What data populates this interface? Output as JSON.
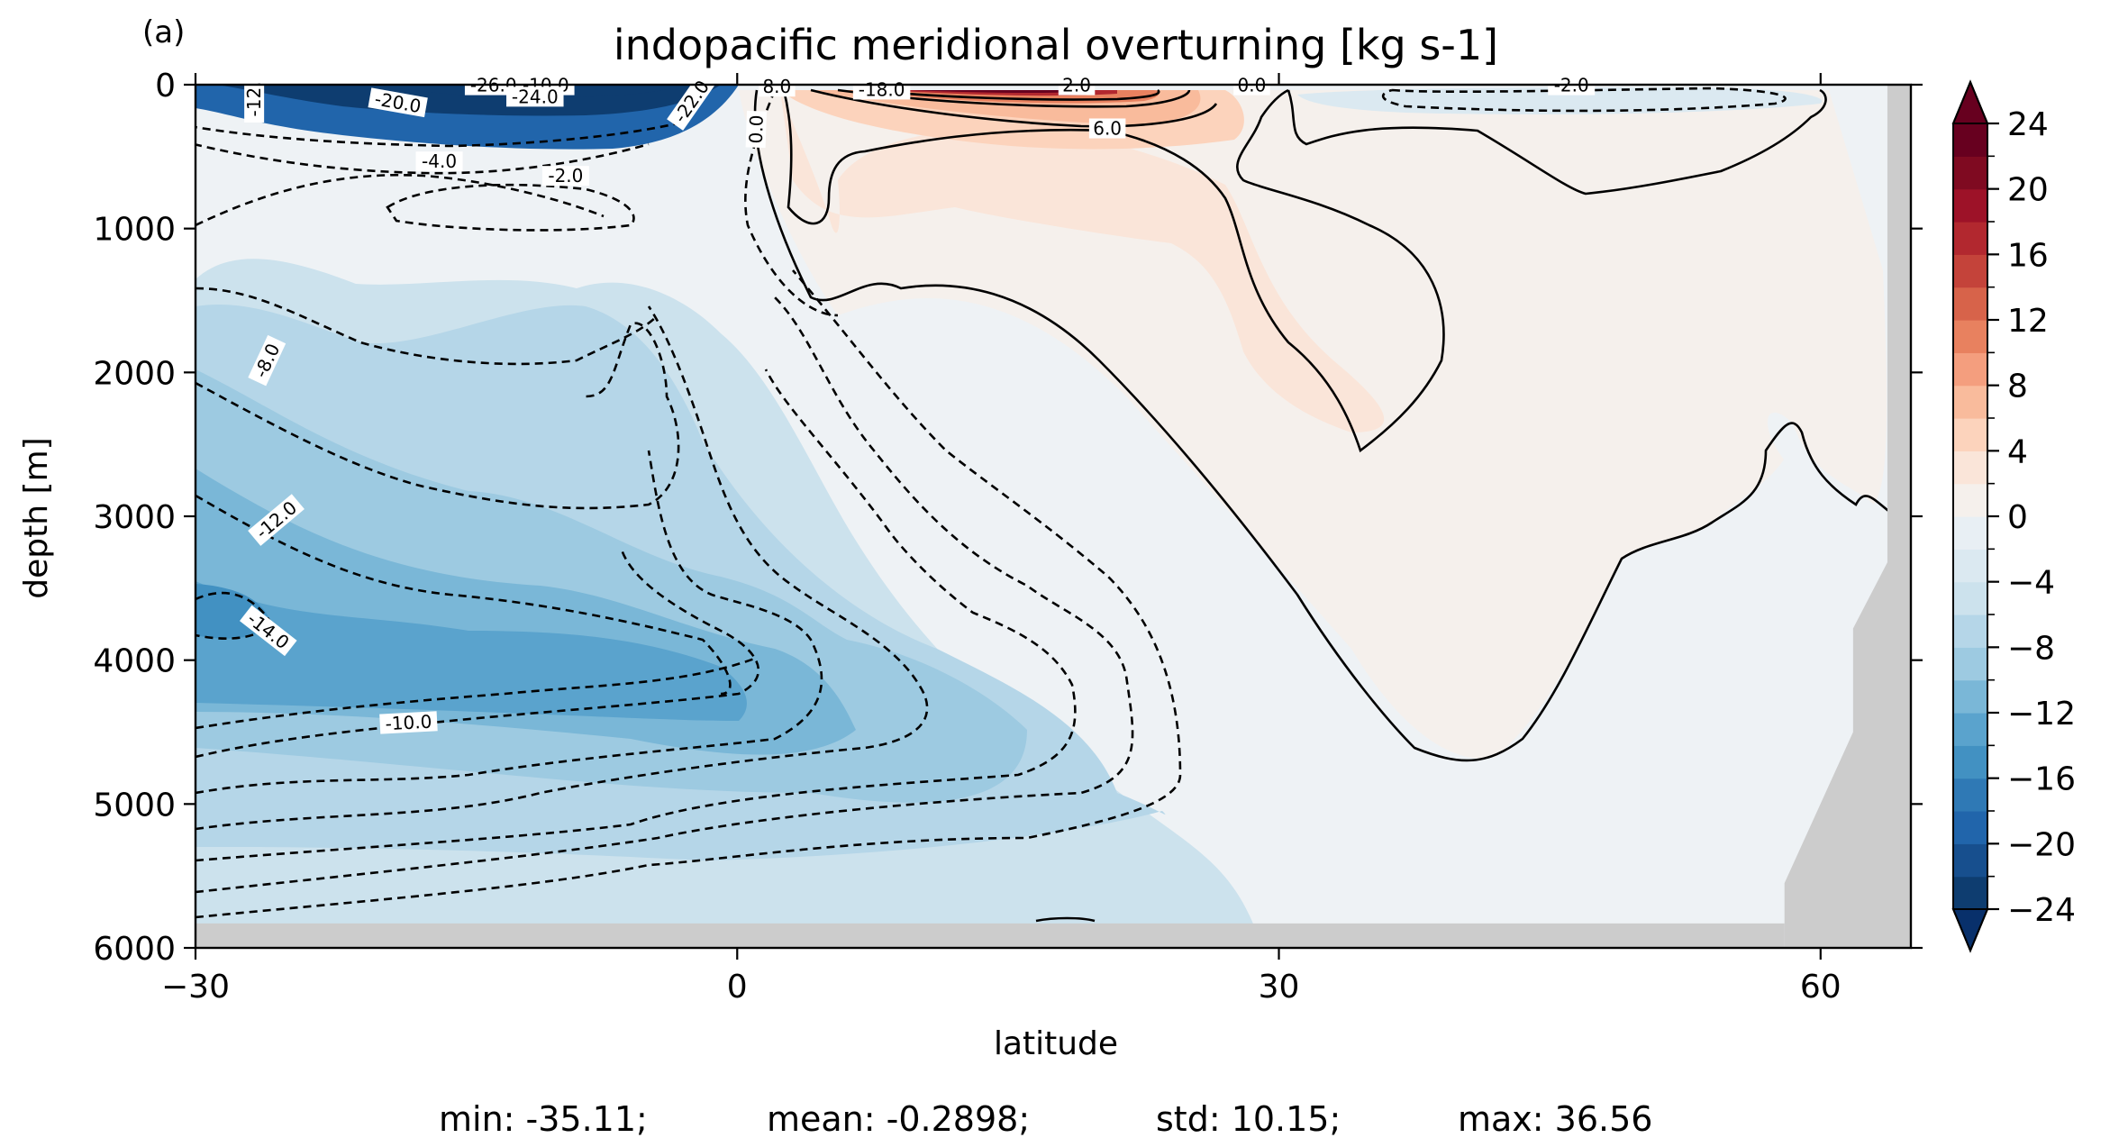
{
  "panel_label": "(a)",
  "stats": {
    "min": "min: -35.11;",
    "mean": "mean: -0.2898;",
    "std": "std: 10.15;",
    "max": "max: 36.56"
  },
  "chart_data": {
    "type": "contourf",
    "title": "indopacific meridional overturning [kg s-1]",
    "xlabel": "latitude",
    "ylabel": "depth [m]",
    "xlim": [
      -30,
      65
    ],
    "ylim": [
      6000,
      0
    ],
    "y_inverted": true,
    "x_ticks": [
      -30,
      0,
      30,
      60
    ],
    "x_tick_labels": [
      "−30",
      "0",
      "30",
      "60"
    ],
    "y_ticks": [
      0,
      1000,
      2000,
      3000,
      4000,
      5000,
      6000
    ],
    "y_tick_labels": [
      "0",
      "1000",
      "2000",
      "3000",
      "4000",
      "5000",
      "6000"
    ],
    "colorbar": {
      "cmap": "RdBu_r",
      "levels": [
        -24,
        -22,
        -20,
        -18,
        -16,
        -14,
        -12,
        -10,
        -8,
        -6,
        -4,
        -2,
        0,
        2,
        4,
        6,
        8,
        10,
        12,
        14,
        16,
        18,
        20,
        22,
        24
      ],
      "tick_values": [
        -24,
        -20,
        -16,
        -12,
        -8,
        -4,
        0,
        4,
        8,
        12,
        16,
        20,
        24
      ],
      "tick_labels": [
        "−24",
        "−20",
        "−16",
        "−12",
        "−8",
        "−4",
        "0",
        "4",
        "8",
        "12",
        "16",
        "20",
        "24"
      ],
      "extend": "both",
      "colors": [
        "#0e3d70",
        "#174f8e",
        "#2165ab",
        "#2f79b5",
        "#4291c2",
        "#5aa3cd",
        "#7ab7d7",
        "#9dcae1",
        "#b5d6e8",
        "#cce2ed",
        "#dbe9f1",
        "#e8eff4",
        "#f5f0ec",
        "#fae5d9",
        "#fcd3bc",
        "#f9bb9c",
        "#f49e7e",
        "#e8815f",
        "#d7634a",
        "#c4433a",
        "#b2282f",
        "#9d1228",
        "#7f0a21",
        "#67001f"
      ],
      "under_color": "#08306b",
      "over_color": "#67001f"
    },
    "contour_labels": [
      {
        "text": "-12.",
        "lat": -26.7,
        "depth": 100,
        "angle": -90
      },
      {
        "text": "-20.0",
        "lat": -18.8,
        "depth": 130,
        "angle": 10
      },
      {
        "text": "-26.0",
        "lat": -13.5,
        "depth": 10,
        "angle": 0
      },
      {
        "text": "-10.0",
        "lat": -10.6,
        "depth": 10,
        "angle": 0
      },
      {
        "text": "-24.0",
        "lat": -11.2,
        "depth": 90,
        "angle": 0
      },
      {
        "text": "-22.0",
        "lat": -2.5,
        "depth": 120,
        "angle": -55
      },
      {
        "text": "-4.0",
        "lat": -16.5,
        "depth": 540,
        "angle": 0
      },
      {
        "text": "-2.0",
        "lat": -9.5,
        "depth": 640,
        "angle": 0
      },
      {
        "text": "0.0",
        "lat": 1.1,
        "depth": 310,
        "angle": -88
      },
      {
        "text": "8.0",
        "lat": 2.2,
        "depth": 20,
        "angle": 0
      },
      {
        "text": "-18.0",
        "lat": 8.0,
        "depth": 40,
        "angle": 0
      },
      {
        "text": "2.0",
        "lat": 18.8,
        "depth": 10,
        "angle": 0
      },
      {
        "text": "6.0",
        "lat": 20.5,
        "depth": 310,
        "angle": 0
      },
      {
        "text": "0.0",
        "lat": 28.5,
        "depth": 10,
        "angle": 0
      },
      {
        "text": "-2.0",
        "lat": 46.2,
        "depth": 10,
        "angle": 0
      },
      {
        "text": "-8.0",
        "lat": -26.0,
        "depth": 1920,
        "angle": -65
      },
      {
        "text": "-12.0",
        "lat": -25.5,
        "depth": 3030,
        "angle": -40
      },
      {
        "text": "-14.0",
        "lat": -26.0,
        "depth": 3800,
        "angle": 38
      },
      {
        "text": "-10.0",
        "lat": -18.2,
        "depth": 4440,
        "angle": -3
      }
    ]
  }
}
